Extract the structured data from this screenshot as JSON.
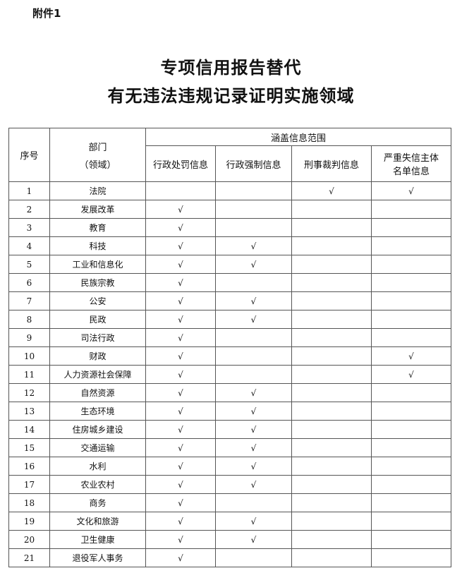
{
  "attachment_label": "附件1",
  "title_line1": "专项信用报告替代",
  "title_line2": "有无违法违规记录证明实施领域",
  "headers": {
    "index": "序号",
    "dept_line1": "部门",
    "dept_line2": "（领域）",
    "scope": "涵盖信息范围",
    "cols": [
      "行政处罚信息",
      "行政强制信息",
      "刑事裁判信息",
      "严重失信主体名单信息"
    ]
  },
  "check_mark": "√",
  "rows": [
    {
      "no": "1",
      "dept": "法院",
      "c": [
        "",
        "",
        "√",
        "√"
      ]
    },
    {
      "no": "2",
      "dept": "发展改革",
      "c": [
        "√",
        "",
        "",
        ""
      ]
    },
    {
      "no": "3",
      "dept": "教育",
      "c": [
        "√",
        "",
        "",
        ""
      ]
    },
    {
      "no": "4",
      "dept": "科技",
      "c": [
        "√",
        "√",
        "",
        ""
      ]
    },
    {
      "no": "5",
      "dept": "工业和信息化",
      "c": [
        "√",
        "√",
        "",
        ""
      ]
    },
    {
      "no": "6",
      "dept": "民族宗教",
      "c": [
        "√",
        "",
        "",
        ""
      ]
    },
    {
      "no": "7",
      "dept": "公安",
      "c": [
        "√",
        "√",
        "",
        ""
      ]
    },
    {
      "no": "8",
      "dept": "民政",
      "c": [
        "√",
        "√",
        "",
        ""
      ]
    },
    {
      "no": "9",
      "dept": "司法行政",
      "c": [
        "√",
        "",
        "",
        ""
      ]
    },
    {
      "no": "10",
      "dept": "财政",
      "c": [
        "√",
        "",
        "",
        "√"
      ]
    },
    {
      "no": "11",
      "dept": "人力资源社会保障",
      "c": [
        "√",
        "",
        "",
        "√"
      ]
    },
    {
      "no": "12",
      "dept": "自然资源",
      "c": [
        "√",
        "√",
        "",
        ""
      ]
    },
    {
      "no": "13",
      "dept": "生态环境",
      "c": [
        "√",
        "√",
        "",
        ""
      ]
    },
    {
      "no": "14",
      "dept": "住房城乡建设",
      "c": [
        "√",
        "√",
        "",
        ""
      ]
    },
    {
      "no": "15",
      "dept": "交通运输",
      "c": [
        "√",
        "√",
        "",
        ""
      ]
    },
    {
      "no": "16",
      "dept": "水利",
      "c": [
        "√",
        "√",
        "",
        ""
      ]
    },
    {
      "no": "17",
      "dept": "农业农村",
      "c": [
        "√",
        "√",
        "",
        ""
      ]
    },
    {
      "no": "18",
      "dept": "商务",
      "c": [
        "√",
        "",
        "",
        ""
      ]
    },
    {
      "no": "19",
      "dept": "文化和旅游",
      "c": [
        "√",
        "√",
        "",
        ""
      ]
    },
    {
      "no": "20",
      "dept": "卫生健康",
      "c": [
        "√",
        "√",
        "",
        ""
      ]
    },
    {
      "no": "21",
      "dept": "退役军人事务",
      "c": [
        "√",
        "",
        "",
        ""
      ]
    }
  ]
}
